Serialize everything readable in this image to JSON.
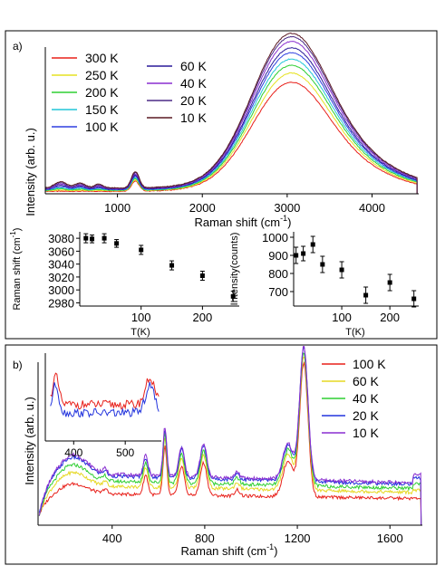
{
  "chart_data": [
    {
      "panel": "a)",
      "type": "line",
      "xlabel": "Raman shift (cm",
      "xlabel_sup": "-1",
      "xlabel_close": ")",
      "ylabel": "Intensity (arb. u.)",
      "xlim": [
        150,
        4550
      ],
      "ylim": [
        0,
        1.1
      ],
      "xticks": [
        1000,
        2000,
        3000,
        4000
      ],
      "xtick_labels": [
        "1000",
        "2000",
        "3000",
        "4000"
      ],
      "legend_columns": 2,
      "series": [
        {
          "name": "300 K",
          "color": "#e8201a",
          "peak": 0.74
        },
        {
          "name": "250 K",
          "color": "#e6e222",
          "peak": 0.8
        },
        {
          "name": "200 K",
          "color": "#2fcf32",
          "peak": 0.85
        },
        {
          "name": "150 K",
          "color": "#22c6d8",
          "peak": 0.89
        },
        {
          "name": "100 K",
          "color": "#2e3fe0",
          "peak": 0.93
        },
        {
          "name": "60 K",
          "color": "#2a1a9a",
          "peak": 0.96
        },
        {
          "name": "40 K",
          "color": "#8a2fd0",
          "peak": 1.0
        },
        {
          "name": "20 K",
          "color": "#4b2a86",
          "peak": 1.03
        },
        {
          "name": "10 K",
          "color": "#5a1822",
          "peak": 1.05
        }
      ]
    },
    {
      "panel": "a-inset-left",
      "type": "scatter",
      "xlabel": "T(K)",
      "ylabel": "Raman shift (cm",
      "ylabel_sup": "-1",
      "ylabel_close": ")",
      "xlim": [
        0,
        260
      ],
      "ylim": [
        2975,
        3090
      ],
      "xticks": [
        100,
        200
      ],
      "xtick_labels": [
        "100",
        "200"
      ],
      "yticks": [
        2980,
        3000,
        3020,
        3040,
        3060,
        3080
      ],
      "ytick_labels": [
        "2980",
        "3000",
        "3020",
        "3040",
        "3060",
        "3080"
      ],
      "x": [
        10,
        20,
        40,
        60,
        100,
        150,
        200,
        250
      ],
      "y": [
        3080,
        3079,
        3080,
        3072,
        3062,
        3038,
        3022,
        2990
      ],
      "err": [
        7,
        6,
        7,
        6,
        7,
        7,
        7,
        8
      ]
    },
    {
      "panel": "a-inset-right",
      "type": "scatter",
      "xlabel": "T(K)",
      "ylabel": "Intensity(counts)",
      "xlim": [
        0,
        260
      ],
      "ylim": [
        620,
        1030
      ],
      "xticks": [
        100,
        200
      ],
      "xtick_labels": [
        "100",
        "200"
      ],
      "yticks": [
        700,
        800,
        900,
        1000
      ],
      "ytick_labels": [
        "700",
        "800",
        "900",
        "1000"
      ],
      "x": [
        5,
        20,
        40,
        60,
        100,
        150,
        200,
        250
      ],
      "y": [
        900,
        910,
        960,
        850,
        820,
        680,
        750,
        660
      ],
      "err": [
        45,
        40,
        45,
        45,
        45,
        45,
        45,
        45
      ]
    },
    {
      "panel": "b)",
      "type": "line",
      "xlabel": "Raman shift (cm",
      "xlabel_sup": "-1",
      "xlabel_close": ")",
      "ylabel": "Intensity (arb. u.)",
      "xlim": [
        80,
        1740
      ],
      "ylim": [
        0,
        1.0
      ],
      "xticks": [
        400,
        800,
        1200,
        1600
      ],
      "xtick_labels": [
        "400",
        "800",
        "1200",
        "1600"
      ],
      "series": [
        {
          "name": "100 K",
          "color": "#e8201a",
          "low": 0.25
        },
        {
          "name": "60 K",
          "color": "#e6d822",
          "low": 0.34
        },
        {
          "name": "40 K",
          "color": "#2fcf32",
          "low": 0.4
        },
        {
          "name": "20 K",
          "color": "#2233dd",
          "low": 0.46
        },
        {
          "name": "10 K",
          "color": "#8a2fd0",
          "low": 0.48
        }
      ],
      "inset": {
        "type": "line",
        "xlim": [
          345,
          570
        ],
        "xticks": [
          400,
          500
        ],
        "xtick_labels": [
          "400",
          "500"
        ],
        "series_colors": [
          "#e8201a",
          "#2233dd"
        ]
      }
    }
  ]
}
